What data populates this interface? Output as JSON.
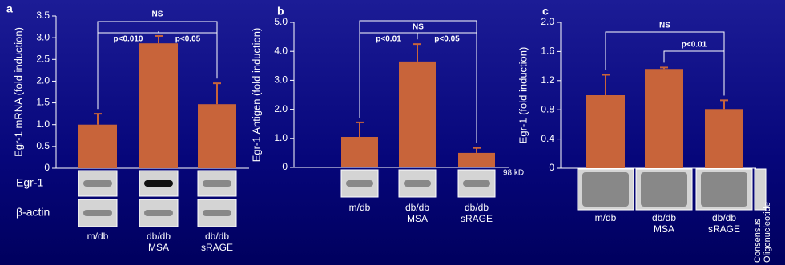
{
  "chart_data": [
    {
      "type": "bar",
      "panel": "a",
      "ylabel": "Egr-1 mRNA (fold induction)",
      "categories": [
        "m/db",
        "db/db MSA",
        "db/db sRAGE"
      ],
      "values": [
        1.0,
        2.87,
        1.47
      ],
      "errors": [
        0.25,
        0.17,
        0.48
      ],
      "color": "#c8643a",
      "ylim": [
        0,
        3.5
      ],
      "yticks": [
        0,
        0.5,
        {
          "value": 1,
          "label": "1.0"
        },
        1.5,
        {
          "value": 2,
          "label": "2.0"
        },
        2.5,
        {
          "value": 3,
          "label": "3.0"
        },
        3.5
      ],
      "annotations": [
        "NS",
        "p<0.010",
        "p<0.05"
      ],
      "blot_labels": [
        "Egr-1",
        "β-actin"
      ]
    },
    {
      "type": "bar",
      "panel": "b",
      "ylabel": "Egr-1 Antigen (fold induction)",
      "categories": [
        "m/db",
        "db/db MSA",
        "db/db sRAGE"
      ],
      "values": [
        1.05,
        3.65,
        0.5
      ],
      "errors": [
        0.5,
        0.6,
        0.17
      ],
      "color": "#c8643a",
      "ylim": [
        0,
        5
      ],
      "yticks": [
        0,
        {
          "value": 1,
          "label": "1.0"
        },
        {
          "value": 2,
          "label": "2.0"
        },
        {
          "value": 3,
          "label": "3.0"
        },
        {
          "value": 4,
          "label": "4.0"
        },
        {
          "value": 5,
          "label": "5.0"
        }
      ],
      "annotations": [
        "NS",
        "p<0.01",
        "p<0.05"
      ],
      "blot_labels": [
        "98 kD"
      ]
    },
    {
      "type": "bar",
      "panel": "c",
      "ylabel": "Egr-1 (fold induction)",
      "categories": [
        "m/db",
        "db/db MSA",
        "db/db sRAGE"
      ],
      "values": [
        1.0,
        1.36,
        0.81
      ],
      "errors": [
        0.28,
        0.02,
        0.12
      ],
      "color": "#c8643a",
      "ylim": [
        0,
        2
      ],
      "yticks": [
        0,
        0.4,
        0.8,
        1.2,
        1.6,
        {
          "value": 2,
          "label": "2.0"
        }
      ],
      "annotations": [
        "NS",
        "p<0.01"
      ],
      "blot_labels": [
        "Consensus Oligonucleotide"
      ]
    }
  ]
}
